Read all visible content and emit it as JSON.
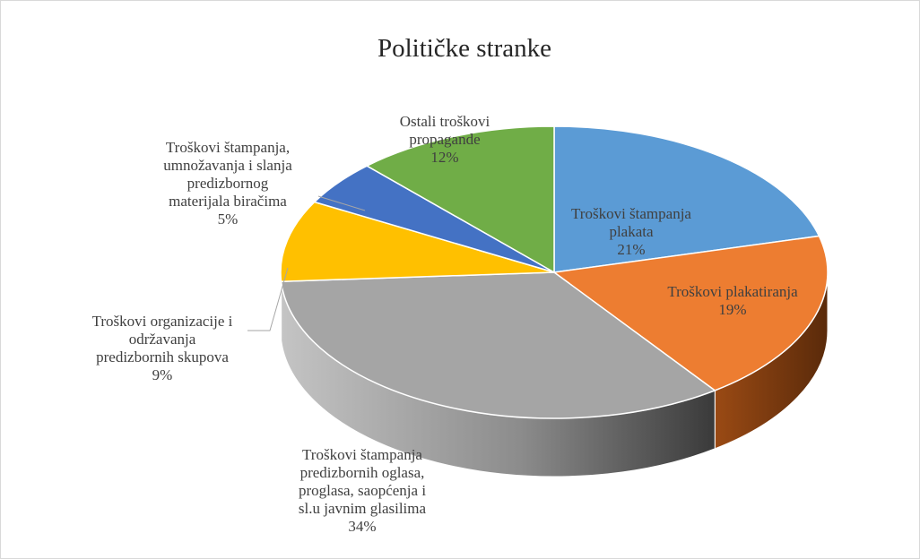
{
  "chart_data": {
    "type": "pie",
    "three_d": true,
    "title": "Političke stranke",
    "start_angle_deg": 90,
    "slices": [
      {
        "label": [
          "Troškovi štampanja",
          "plakata"
        ],
        "pct_label": "21%",
        "value": 21,
        "color": "#5b9bd5",
        "side_color": "#3f6f9a"
      },
      {
        "label": [
          "Troškovi plakatiranja"
        ],
        "pct_label": "19%",
        "value": 19,
        "color": "#ed7d31",
        "side_color": "#7a3a12"
      },
      {
        "label": [
          "Troškovi štampanja",
          "predizbornih oglasa,",
          "proglasa, saopćenja i",
          "sl.u javnim glasilima"
        ],
        "pct_label": "34%",
        "value": 34,
        "color": "#a5a5a5",
        "side_color": "#6e6e6e"
      },
      {
        "label": [
          "Troškovi organizacije i",
          "održavanja",
          "predizbornih skupova"
        ],
        "pct_label": "9%",
        "value": 9,
        "color": "#ffc000",
        "side_color": "#a07800"
      },
      {
        "label": [
          "Troškovi štampanja,",
          "umnožavanja  i slanja",
          "predizbornog",
          "materijala biračima"
        ],
        "pct_label": "5%",
        "value": 5,
        "color": "#4472c4",
        "side_color": "#2d4c85"
      },
      {
        "label": [
          "Ostali troškovi",
          "propagande"
        ],
        "pct_label": "12%",
        "value": 12,
        "color": "#70ad47",
        "side_color": "#47702d"
      }
    ]
  }
}
